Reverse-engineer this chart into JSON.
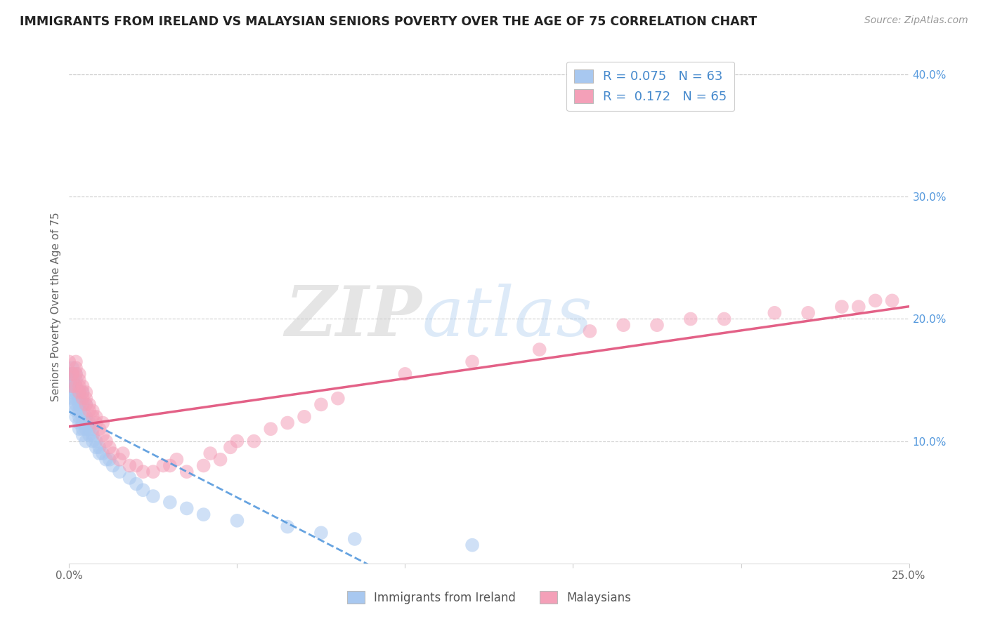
{
  "title": "IMMIGRANTS FROM IRELAND VS MALAYSIAN SENIORS POVERTY OVER THE AGE OF 75 CORRELATION CHART",
  "source": "Source: ZipAtlas.com",
  "ylabel": "Seniors Poverty Over the Age of 75",
  "xlim": [
    0.0,
    0.25
  ],
  "ylim": [
    0.0,
    0.42
  ],
  "R_blue": 0.075,
  "N_blue": 63,
  "R_pink": 0.172,
  "N_pink": 65,
  "blue_color": "#A8C8F0",
  "pink_color": "#F4A0B8",
  "blue_line_color": "#5599DD",
  "pink_line_color": "#E0507A",
  "watermark_zip": "ZIP",
  "watermark_atlas": "atlas",
  "legend_label_blue": "Immigrants from Ireland",
  "legend_label_pink": "Malaysians",
  "blue_scatter_x": [
    0.0,
    0.0,
    0.0,
    0.001,
    0.001,
    0.001,
    0.001,
    0.001,
    0.001,
    0.001,
    0.002,
    0.002,
    0.002,
    0.002,
    0.002,
    0.002,
    0.002,
    0.002,
    0.003,
    0.003,
    0.003,
    0.003,
    0.003,
    0.003,
    0.003,
    0.004,
    0.004,
    0.004,
    0.004,
    0.004,
    0.004,
    0.005,
    0.005,
    0.005,
    0.005,
    0.005,
    0.006,
    0.006,
    0.006,
    0.007,
    0.007,
    0.007,
    0.008,
    0.008,
    0.009,
    0.009,
    0.01,
    0.011,
    0.012,
    0.013,
    0.015,
    0.018,
    0.02,
    0.022,
    0.025,
    0.03,
    0.035,
    0.04,
    0.05,
    0.065,
    0.075,
    0.085,
    0.12
  ],
  "blue_scatter_y": [
    0.15,
    0.155,
    0.145,
    0.13,
    0.135,
    0.14,
    0.145,
    0.15,
    0.155,
    0.16,
    0.12,
    0.125,
    0.13,
    0.135,
    0.14,
    0.145,
    0.15,
    0.155,
    0.11,
    0.115,
    0.12,
    0.125,
    0.13,
    0.135,
    0.14,
    0.105,
    0.11,
    0.115,
    0.12,
    0.13,
    0.14,
    0.1,
    0.11,
    0.115,
    0.12,
    0.13,
    0.105,
    0.11,
    0.115,
    0.1,
    0.105,
    0.11,
    0.095,
    0.1,
    0.09,
    0.095,
    0.09,
    0.085,
    0.085,
    0.08,
    0.075,
    0.07,
    0.065,
    0.06,
    0.055,
    0.05,
    0.045,
    0.04,
    0.035,
    0.03,
    0.025,
    0.02,
    0.015
  ],
  "pink_scatter_x": [
    0.0,
    0.001,
    0.001,
    0.001,
    0.002,
    0.002,
    0.002,
    0.002,
    0.003,
    0.003,
    0.003,
    0.003,
    0.004,
    0.004,
    0.004,
    0.005,
    0.005,
    0.005,
    0.006,
    0.006,
    0.007,
    0.007,
    0.008,
    0.008,
    0.009,
    0.01,
    0.01,
    0.011,
    0.012,
    0.013,
    0.015,
    0.016,
    0.018,
    0.02,
    0.022,
    0.025,
    0.028,
    0.03,
    0.032,
    0.035,
    0.04,
    0.042,
    0.045,
    0.048,
    0.05,
    0.055,
    0.06,
    0.065,
    0.07,
    0.075,
    0.08,
    0.1,
    0.12,
    0.14,
    0.155,
    0.165,
    0.175,
    0.185,
    0.195,
    0.21,
    0.22,
    0.23,
    0.235,
    0.24,
    0.245
  ],
  "pink_scatter_y": [
    0.165,
    0.155,
    0.145,
    0.155,
    0.145,
    0.155,
    0.16,
    0.165,
    0.14,
    0.145,
    0.15,
    0.155,
    0.135,
    0.14,
    0.145,
    0.13,
    0.135,
    0.14,
    0.125,
    0.13,
    0.12,
    0.125,
    0.115,
    0.12,
    0.11,
    0.105,
    0.115,
    0.1,
    0.095,
    0.09,
    0.085,
    0.09,
    0.08,
    0.08,
    0.075,
    0.075,
    0.08,
    0.08,
    0.085,
    0.075,
    0.08,
    0.09,
    0.085,
    0.095,
    0.1,
    0.1,
    0.11,
    0.115,
    0.12,
    0.13,
    0.135,
    0.155,
    0.165,
    0.175,
    0.19,
    0.195,
    0.195,
    0.2,
    0.2,
    0.205,
    0.205,
    0.21,
    0.21,
    0.215,
    0.215
  ]
}
